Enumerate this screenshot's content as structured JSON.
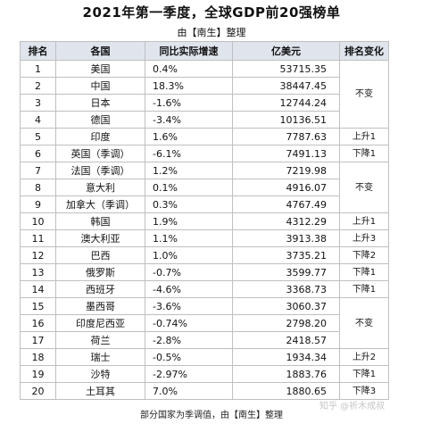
{
  "title": "2021年第一季度，全球GDP前20强榜单",
  "subtitle": "由【南生】整理",
  "headers": [
    "排名",
    "各国",
    "同比实际增速",
    "亿美元",
    "排名变化"
  ],
  "rows": [
    {
      "rank": "1",
      "country": "美国",
      "growth": "0.4%",
      "gdp": "53715.35"
    },
    {
      "rank": "2",
      "country": "中国",
      "growth": "18.3%",
      "gdp": "38447.45"
    },
    {
      "rank": "3",
      "country": "日本",
      "growth": "-1.6%",
      "gdp": "12744.24"
    },
    {
      "rank": "4",
      "country": "德国",
      "growth": "-3.4%",
      "gdp": "10136.51"
    },
    {
      "rank": "5",
      "country": "印度",
      "growth": "1.6%",
      "gdp": "7787.63"
    },
    {
      "rank": "6",
      "country": "英国（季调）",
      "growth": "-6.1%",
      "gdp": "7491.13"
    },
    {
      "rank": "7",
      "country": "法国（季调）",
      "growth": "1.2%",
      "gdp": "7219.98"
    },
    {
      "rank": "8",
      "country": "意大利",
      "growth": "0.1%",
      "gdp": "4916.07"
    },
    {
      "rank": "9",
      "country": "加拿大（季调）",
      "growth": "0.3%",
      "gdp": "4767.49"
    },
    {
      "rank": "10",
      "country": "韩国",
      "growth": "1.9%",
      "gdp": "4312.29"
    },
    {
      "rank": "11",
      "country": "澳大利亚",
      "growth": "1.1%",
      "gdp": "3913.38"
    },
    {
      "rank": "12",
      "country": "巴西",
      "growth": "1.0%",
      "gdp": "3735.21"
    },
    {
      "rank": "13",
      "country": "俄罗斯",
      "growth": "-0.7%",
      "gdp": "3599.77"
    },
    {
      "rank": "14",
      "country": "西班牙",
      "growth": "-4.6%",
      "gdp": "3368.73"
    },
    {
      "rank": "15",
      "country": "墨西哥",
      "growth": "-3.6%",
      "gdp": "3060.37"
    },
    {
      "rank": "16",
      "country": "印度尼西亚",
      "growth": "-0.74%",
      "gdp": "2798.20"
    },
    {
      "rank": "17",
      "country": "荷兰",
      "growth": "-2.8%",
      "gdp": "2418.57"
    },
    {
      "rank": "18",
      "country": "瑞士",
      "growth": "-0.5%",
      "gdp": "1934.34"
    },
    {
      "rank": "19",
      "country": "沙特",
      "growth": "-2.97%",
      "gdp": "1883.76"
    },
    {
      "rank": "20",
      "country": "土耳其",
      "growth": "7.0%",
      "gdp": "1880.65"
    }
  ],
  "changes": [
    {
      "label": "不变",
      "span": 4
    },
    {
      "label": "上升1",
      "span": 1
    },
    {
      "label": "下降1",
      "span": 1
    },
    {
      "label": "不变",
      "span": 3
    },
    {
      "label": "上升1",
      "span": 1
    },
    {
      "label": "上升3",
      "span": 1
    },
    {
      "label": "下降2",
      "span": 1
    },
    {
      "label": "下降1",
      "span": 1
    },
    {
      "label": "下降1",
      "span": 1
    },
    {
      "label": "不变",
      "span": 3
    },
    {
      "label": "上升2",
      "span": 1
    },
    {
      "label": "下降1",
      "span": 1
    },
    {
      "label": "下降3",
      "span": 1
    }
  ],
  "footer": "部分国家为季调值，由【南生】整理",
  "watermark": "知乎 @祈木成叔",
  "colors": {
    "header_bg": "#dfe4ed",
    "border": "#bfbfbf"
  }
}
